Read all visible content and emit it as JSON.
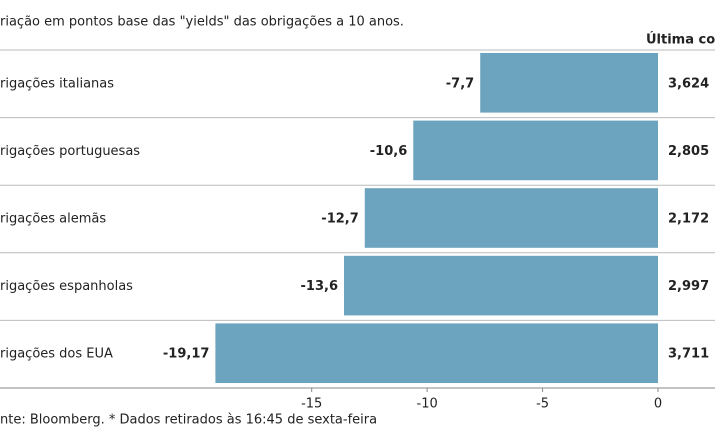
{
  "chart_data": {
    "type": "bar",
    "orientation": "horizontal",
    "title": "riação em pontos base das \"yields\" das obrigações a 10 anos.",
    "categories": [
      "rigações italianas",
      "rigações portuguesas",
      "rigações alemãs",
      "rigações espanholas",
      "rigações dos EUA"
    ],
    "values": [
      -7.7,
      -10.6,
      -12.7,
      -13.6,
      -19.17
    ],
    "value_labels": [
      "-7,7",
      "-10,6",
      "-12,7",
      "-13,6",
      "-19,17"
    ],
    "color": "#6ca3be",
    "xlim": [
      -28.5,
      0
    ],
    "xticks": [
      -15,
      -10,
      -5,
      0
    ],
    "side_header": "Última cota",
    "side_values": [
      "3,624",
      "2,805",
      "2,172",
      "2,997",
      "3,711"
    ],
    "source": "nte: Bloomberg.  * Dados retirados às 16:45 de sexta-feira"
  }
}
